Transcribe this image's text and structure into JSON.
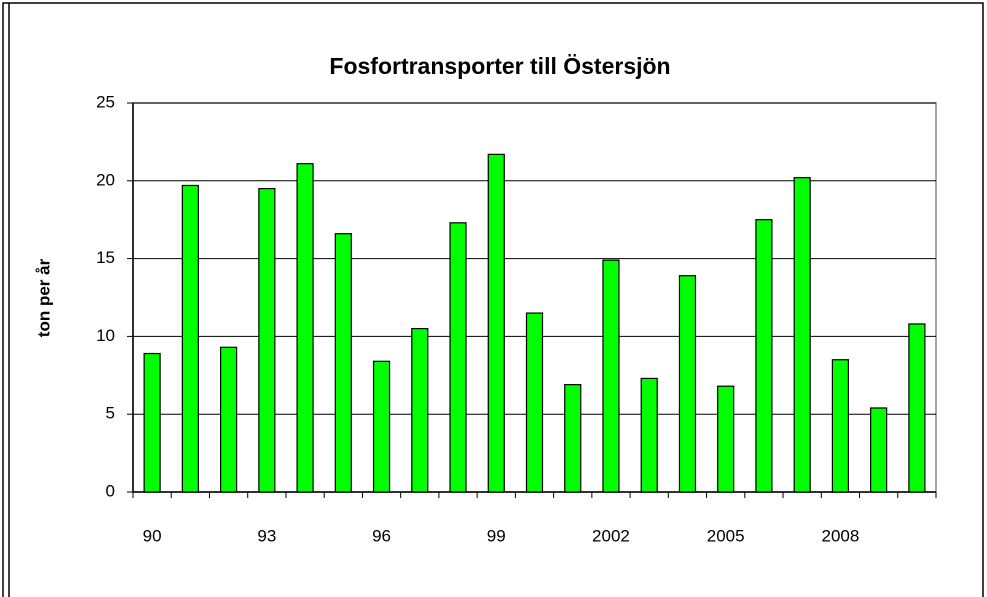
{
  "chart_data": {
    "type": "bar",
    "title": "Fosfortransporter till Östersjön",
    "y_label": "ton per år",
    "categories": [
      "90",
      null,
      null,
      "93",
      null,
      null,
      "96",
      null,
      null,
      "99",
      null,
      null,
      "2002",
      null,
      null,
      "2005",
      null,
      null,
      "2008",
      null,
      null
    ],
    "values": [
      8.9,
      19.7,
      9.3,
      19.5,
      21.1,
      16.6,
      8.4,
      10.5,
      17.3,
      21.7,
      11.5,
      6.9,
      14.9,
      7.3,
      13.9,
      6.8,
      17.5,
      20.2,
      8.5,
      5.4,
      10.8
    ],
    "color": "#00ff00",
    "ylim": [
      0,
      25
    ],
    "yticks": [
      0,
      5,
      10,
      15,
      20,
      25
    ],
    "grid": true
  }
}
